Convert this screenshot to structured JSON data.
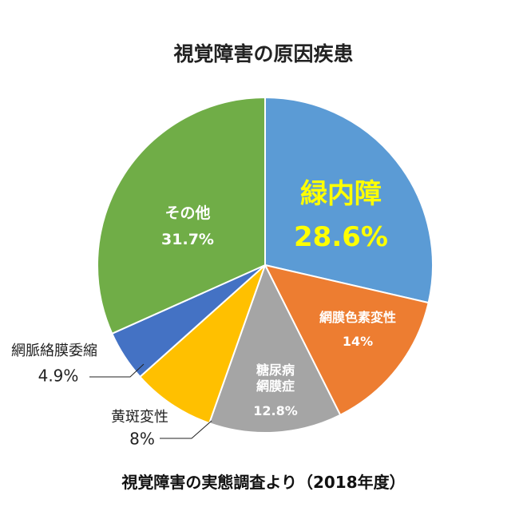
{
  "chart_data": {
    "type": "pie",
    "title": "視覚障害の原因疾患",
    "categories": [
      "緑内障",
      "網膜色素変性",
      "糖尿病\n網膜症",
      "黄斑変性",
      "網脈絡膜委縮",
      "その他"
    ],
    "values": [
      28.6,
      14,
      12.8,
      8,
      4.9,
      31.7
    ],
    "value_labels": [
      "28.6%",
      "14%",
      "12.8%",
      "8%",
      "4.9%",
      "31.7%"
    ],
    "colors": [
      "#5b9bd5",
      "#ed7d31",
      "#a5a5a5",
      "#ffc000",
      "#4472c4",
      "#70ad47"
    ],
    "source": "視覚障害の実態調査より（2018年度）"
  }
}
